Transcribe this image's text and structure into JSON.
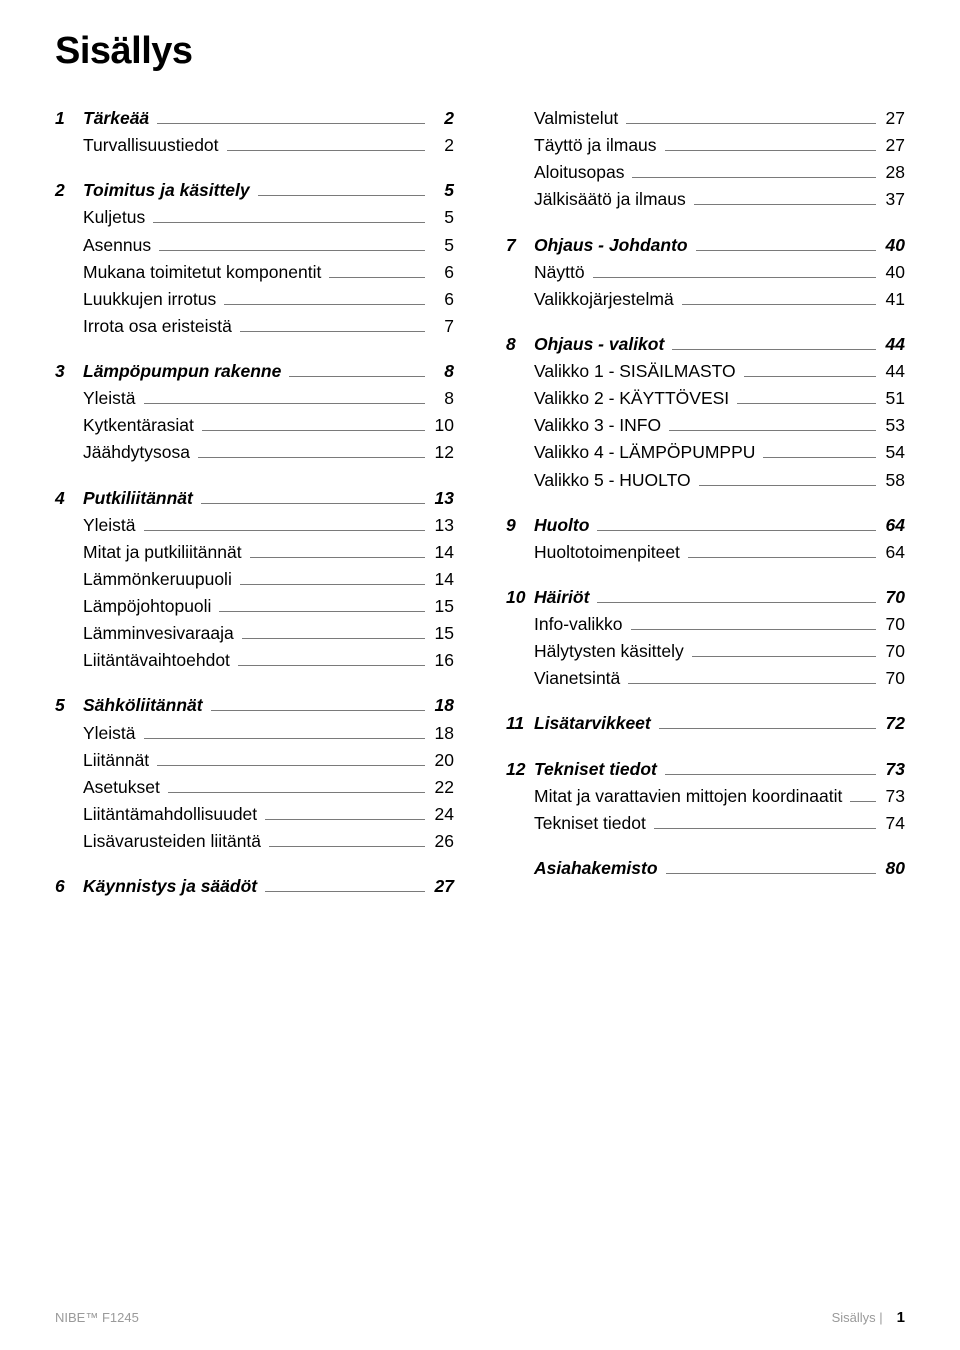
{
  "title": "Sisällys",
  "footer": {
    "left": "NIBE™ F1245",
    "right_label": "Sisällys |",
    "right_page": "1"
  },
  "blocks": [
    {
      "type": "chapter",
      "col": 0,
      "num": "1",
      "label": "Tärkeää",
      "page": "2"
    },
    {
      "type": "entry",
      "col": 0,
      "label": "Turvallisuustiedot",
      "page": "2",
      "last": true
    },
    {
      "type": "chapter",
      "col": 0,
      "num": "2",
      "label": "Toimitus ja käsittely",
      "page": "5"
    },
    {
      "type": "entry",
      "col": 0,
      "label": "Kuljetus",
      "page": "5"
    },
    {
      "type": "entry",
      "col": 0,
      "label": "Asennus",
      "page": "5"
    },
    {
      "type": "entry",
      "col": 0,
      "label": "Mukana toimitetut komponentit",
      "page": "6"
    },
    {
      "type": "entry",
      "col": 0,
      "label": "Luukkujen irrotus",
      "page": "6"
    },
    {
      "type": "entry",
      "col": 0,
      "label": "Irrota osa eristeistä",
      "page": "7",
      "last": true
    },
    {
      "type": "chapter",
      "col": 0,
      "num": "3",
      "label": "Lämpöpumpun rakenne",
      "page": "8"
    },
    {
      "type": "entry",
      "col": 0,
      "label": "Yleistä",
      "page": "8"
    },
    {
      "type": "entry",
      "col": 0,
      "label": "Kytkentärasiat",
      "page": "10"
    },
    {
      "type": "entry",
      "col": 0,
      "label": "Jäähdytysosa",
      "page": "12",
      "last": true
    },
    {
      "type": "chapter",
      "col": 0,
      "num": "4",
      "label": "Putkiliitännät",
      "page": "13"
    },
    {
      "type": "entry",
      "col": 0,
      "label": "Yleistä",
      "page": "13"
    },
    {
      "type": "entry",
      "col": 0,
      "label": "Mitat ja putkiliitännät",
      "page": "14"
    },
    {
      "type": "entry",
      "col": 0,
      "label": "Lämmönkeruupuoli",
      "page": "14"
    },
    {
      "type": "entry",
      "col": 0,
      "label": "Lämpöjohtopuoli",
      "page": "15"
    },
    {
      "type": "entry",
      "col": 0,
      "label": "Lämminvesivaraaja",
      "page": "15"
    },
    {
      "type": "entry",
      "col": 0,
      "label": "Liitäntävaihtoehdot",
      "page": "16",
      "last": true
    },
    {
      "type": "chapter",
      "col": 0,
      "num": "5",
      "label": "Sähköliitännät",
      "page": "18"
    },
    {
      "type": "entry",
      "col": 0,
      "label": "Yleistä",
      "page": "18"
    },
    {
      "type": "entry",
      "col": 0,
      "label": "Liitännät",
      "page": "20"
    },
    {
      "type": "entry",
      "col": 0,
      "label": "Asetukset",
      "page": "22"
    },
    {
      "type": "entry",
      "col": 0,
      "label": "Liitäntämahdollisuudet",
      "page": "24"
    },
    {
      "type": "entry",
      "col": 0,
      "label": "Lisävarusteiden liitäntä",
      "page": "26",
      "last": true
    },
    {
      "type": "chapter",
      "col": 0,
      "num": "6",
      "label": "Käynnistys ja säädöt",
      "page": "27"
    },
    {
      "type": "entry",
      "col": 1,
      "label": "Valmistelut",
      "page": "27"
    },
    {
      "type": "entry",
      "col": 1,
      "label": "Täyttö ja ilmaus",
      "page": "27"
    },
    {
      "type": "entry",
      "col": 1,
      "label": "Aloitusopas",
      "page": "28"
    },
    {
      "type": "entry",
      "col": 1,
      "label": "Jälkisäätö ja ilmaus",
      "page": "37",
      "last": true
    },
    {
      "type": "chapter",
      "col": 1,
      "num": "7",
      "label": "Ohjaus - Johdanto",
      "page": "40"
    },
    {
      "type": "entry",
      "col": 1,
      "label": "Näyttö",
      "page": "40"
    },
    {
      "type": "entry",
      "col": 1,
      "label": "Valikkojärjestelmä",
      "page": "41",
      "last": true
    },
    {
      "type": "chapter",
      "col": 1,
      "num": "8",
      "label": "Ohjaus - valikot",
      "page": "44"
    },
    {
      "type": "entry",
      "col": 1,
      "label": "Valikko 1 - SISÄILMASTO",
      "page": "44"
    },
    {
      "type": "entry",
      "col": 1,
      "label": "Valikko 2 - KÄYTTÖVESI",
      "page": "51"
    },
    {
      "type": "entry",
      "col": 1,
      "label": "Valikko 3 - INFO",
      "page": "53"
    },
    {
      "type": "entry",
      "col": 1,
      "label": "Valikko 4 - LÄMPÖPUMPPU",
      "page": "54"
    },
    {
      "type": "entry",
      "col": 1,
      "label": "Valikko 5 - HUOLTO",
      "page": "58",
      "last": true
    },
    {
      "type": "chapter",
      "col": 1,
      "num": "9",
      "label": "Huolto",
      "page": "64"
    },
    {
      "type": "entry",
      "col": 1,
      "label": "Huoltotoimenpiteet",
      "page": "64",
      "last": true
    },
    {
      "type": "chapter",
      "col": 1,
      "num": "10",
      "label": "Häiriöt",
      "page": "70"
    },
    {
      "type": "entry",
      "col": 1,
      "label": "Info-valikko",
      "page": "70"
    },
    {
      "type": "entry",
      "col": 1,
      "label": "Hälytysten käsittely",
      "page": "70"
    },
    {
      "type": "entry",
      "col": 1,
      "label": "Vianetsintä",
      "page": "70",
      "last": true
    },
    {
      "type": "chapter",
      "col": 1,
      "num": "11",
      "label": "Lisätarvikkeet",
      "page": "72",
      "last": true
    },
    {
      "type": "chapter",
      "col": 1,
      "num": "12",
      "label": "Tekniset tiedot",
      "page": "73"
    },
    {
      "type": "entry",
      "col": 1,
      "label": "Mitat ja varattavien mittojen koordinaatit",
      "page": "73"
    },
    {
      "type": "entry",
      "col": 1,
      "label": "Tekniset tiedot",
      "page": "74",
      "last": true
    },
    {
      "type": "chapter",
      "col": 1,
      "num": "",
      "label": "Asiahakemisto",
      "page": "80"
    }
  ]
}
